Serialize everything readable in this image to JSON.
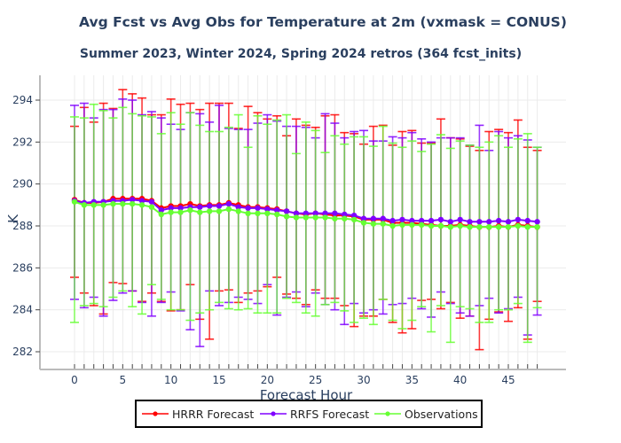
{
  "chart_data": {
    "type": "line",
    "title": "Avg Fcst vs Avg Obs for Temperature at 2m (vxmask = CONUS)",
    "subtitle": "Summer 2023, Winter 2024, Spring 2024 retros (364 fcst_inits)",
    "xlabel": "Forecast Hour",
    "ylabel": "K",
    "xlim": [
      -3.5,
      51
    ],
    "ylim": [
      281.2,
      295.2
    ],
    "xticks": [
      0,
      5,
      10,
      15,
      20,
      25,
      30,
      35,
      40,
      45
    ],
    "yticks": [
      282,
      284,
      286,
      288,
      290,
      292,
      294
    ],
    "grid": true,
    "legend_position": "bottom-center",
    "x": [
      0,
      1,
      2,
      3,
      4,
      5,
      6,
      7,
      8,
      9,
      10,
      11,
      12,
      13,
      14,
      15,
      16,
      17,
      18,
      19,
      20,
      21,
      22,
      23,
      24,
      25,
      26,
      27,
      28,
      29,
      30,
      31,
      32,
      33,
      34,
      35,
      36,
      37,
      38,
      39,
      40,
      41,
      42,
      43,
      44,
      45,
      46,
      47,
      48
    ],
    "series": [
      {
        "name": "HRRR Forecast",
        "color": "#ff0000",
        "values": [
          289.25,
          289.1,
          289.1,
          289.15,
          289.3,
          289.3,
          289.3,
          289.3,
          289.2,
          288.85,
          288.95,
          288.95,
          289.05,
          288.95,
          289.0,
          289.0,
          289.1,
          289.0,
          288.9,
          288.9,
          288.85,
          288.8,
          288.7,
          288.6,
          288.55,
          288.6,
          288.55,
          288.5,
          288.5,
          288.45,
          288.3,
          288.3,
          288.3,
          288.15,
          288.15,
          288.15,
          288.1,
          288.05,
          288.0,
          288.0,
          288.05,
          288.0,
          287.95,
          287.95,
          288.0,
          287.95,
          288.05,
          288.0,
          287.95
        ],
        "upper": [
          292.75,
          293.65,
          292.95,
          293.85,
          293.6,
          294.5,
          294.3,
          294.1,
          293.3,
          293.3,
          294.05,
          293.8,
          293.85,
          293.55,
          293.85,
          293.85,
          293.85,
          292.65,
          293.7,
          293.4,
          293.1,
          293.25,
          292.3,
          293.1,
          292.8,
          292.7,
          293.25,
          293.3,
          292.45,
          292.4,
          291.9,
          292.75,
          292.8,
          291.85,
          292.5,
          292.55,
          291.95,
          291.95,
          293.1,
          292.2,
          292.15,
          291.8,
          291.6,
          292.5,
          292.6,
          292.45,
          293.05,
          291.75,
          291.6
        ],
        "lower": [
          285.55,
          284.8,
          284.2,
          283.8,
          285.3,
          285.25,
          284.9,
          284.4,
          284.8,
          284.4,
          283.95,
          284.0,
          285.2,
          283.55,
          282.6,
          284.9,
          284.95,
          284.35,
          284.8,
          284.9,
          285.1,
          285.55,
          284.75,
          284.55,
          284.25,
          284.95,
          284.55,
          284.55,
          284.2,
          283.2,
          283.7,
          283.7,
          284.5,
          283.4,
          282.9,
          283.1,
          284.45,
          284.5,
          284.05,
          284.35,
          283.6,
          283.7,
          282.1,
          283.55,
          283.9,
          283.45,
          284.1,
          282.6,
          284.4
        ]
      },
      {
        "name": "RRFS Forecast",
        "color": "#8000ff",
        "values": [
          289.2,
          289.1,
          289.15,
          289.15,
          289.2,
          289.2,
          289.25,
          289.2,
          289.15,
          288.75,
          288.85,
          288.85,
          288.9,
          288.9,
          288.95,
          288.95,
          289.05,
          288.9,
          288.85,
          288.85,
          288.8,
          288.75,
          288.7,
          288.6,
          288.6,
          288.6,
          288.6,
          288.6,
          288.55,
          288.5,
          288.35,
          288.35,
          288.35,
          288.25,
          288.3,
          288.25,
          288.25,
          288.25,
          288.3,
          288.2,
          288.3,
          288.2,
          288.2,
          288.2,
          288.25,
          288.2,
          288.3,
          288.25,
          288.2
        ],
        "upper": [
          293.75,
          293.85,
          293.15,
          293.55,
          293.55,
          294.05,
          294.0,
          293.3,
          293.45,
          293.15,
          292.85,
          292.6,
          293.4,
          293.35,
          292.95,
          293.75,
          292.65,
          292.6,
          292.6,
          292.9,
          293.3,
          293.0,
          292.75,
          292.75,
          292.7,
          292.2,
          293.35,
          292.9,
          292.2,
          292.5,
          292.55,
          292.05,
          292.05,
          292.25,
          292.2,
          292.45,
          292.15,
          292.0,
          292.2,
          292.2,
          292.2,
          291.85,
          292.8,
          291.6,
          292.5,
          292.2,
          292.3,
          292.1,
          291.75
        ],
        "lower": [
          284.5,
          284.1,
          284.6,
          283.7,
          284.45,
          284.8,
          284.9,
          284.35,
          283.7,
          284.35,
          284.85,
          283.95,
          283.05,
          282.25,
          284.9,
          284.2,
          284.35,
          284.6,
          284.5,
          284.3,
          285.2,
          283.75,
          284.6,
          284.85,
          284.15,
          284.8,
          284.25,
          284.0,
          283.3,
          284.3,
          283.85,
          284.0,
          283.8,
          284.25,
          284.3,
          284.55,
          284.05,
          283.65,
          284.85,
          284.3,
          283.85,
          283.7,
          284.2,
          284.55,
          283.85,
          284.05,
          284.6,
          282.8,
          283.75
        ]
      },
      {
        "name": "Observations",
        "color": "#66ff33",
        "values": [
          289.15,
          289.0,
          289.0,
          289.0,
          289.05,
          289.05,
          289.05,
          289.0,
          288.9,
          288.55,
          288.65,
          288.65,
          288.75,
          288.65,
          288.7,
          288.7,
          288.8,
          288.7,
          288.6,
          288.6,
          288.6,
          288.55,
          288.45,
          288.4,
          288.4,
          288.4,
          288.4,
          288.35,
          288.35,
          288.3,
          288.15,
          288.1,
          288.1,
          288.0,
          288.05,
          288.05,
          288.05,
          288.0,
          288.0,
          287.95,
          288.0,
          287.95,
          287.95,
          287.95,
          287.95,
          287.95,
          288.0,
          287.95,
          287.95
        ],
        "upper": [
          293.2,
          293.15,
          293.8,
          293.5,
          293.15,
          293.65,
          293.35,
          293.25,
          293.2,
          292.4,
          293.4,
          292.85,
          293.4,
          292.8,
          292.5,
          292.5,
          292.7,
          293.3,
          291.75,
          293.25,
          292.85,
          293.05,
          293.3,
          291.45,
          292.95,
          292.55,
          291.5,
          292.3,
          291.9,
          292.25,
          292.25,
          291.8,
          292.75,
          291.95,
          291.75,
          292.05,
          291.55,
          291.9,
          292.35,
          291.7,
          292.05,
          291.85,
          291.75,
          292.0,
          292.3,
          291.75,
          292.15,
          292.4,
          291.75
        ],
        "lower": [
          283.4,
          284.2,
          284.3,
          284.15,
          284.6,
          284.9,
          284.15,
          283.8,
          285.2,
          284.5,
          284.0,
          284.0,
          283.5,
          283.85,
          284.0,
          284.35,
          284.05,
          284.0,
          284.05,
          283.85,
          283.85,
          283.85,
          284.55,
          284.35,
          283.85,
          283.7,
          284.25,
          284.35,
          283.95,
          283.4,
          283.6,
          283.3,
          284.5,
          283.5,
          283.1,
          283.5,
          284.15,
          282.95,
          284.2,
          282.45,
          284.15,
          284.05,
          283.4,
          283.4,
          284.0,
          284.0,
          284.3,
          282.45,
          284.1
        ]
      }
    ]
  }
}
